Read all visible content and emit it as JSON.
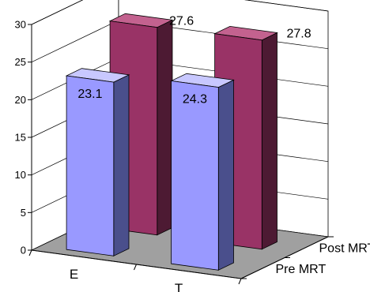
{
  "chart_data": {
    "type": "bar",
    "categories": [
      "E",
      "T"
    ],
    "series": [
      {
        "name": "Pre MRT",
        "values": [
          23.1,
          24.3
        ]
      },
      {
        "name": "Post MRT",
        "values": [
          27.6,
          27.8
        ]
      }
    ],
    "ylim": [
      0,
      30
    ],
    "yticks": [
      0,
      5,
      10,
      15,
      20,
      25,
      30
    ],
    "title": "",
    "xlabel": "",
    "ylabel": "",
    "grid": true,
    "style": "3d-clustered-depth",
    "colors": {
      "pre_front": "#9999ff",
      "pre_side": "#4a4f8c",
      "pre_top": "#c8c8ff",
      "post_front": "#993366",
      "post_side": "#4d1a33",
      "post_top": "#c3628f",
      "walls": "#ffffff",
      "floor": "#a0a0a0",
      "axis": "#000000",
      "gridline": "#000000"
    }
  }
}
